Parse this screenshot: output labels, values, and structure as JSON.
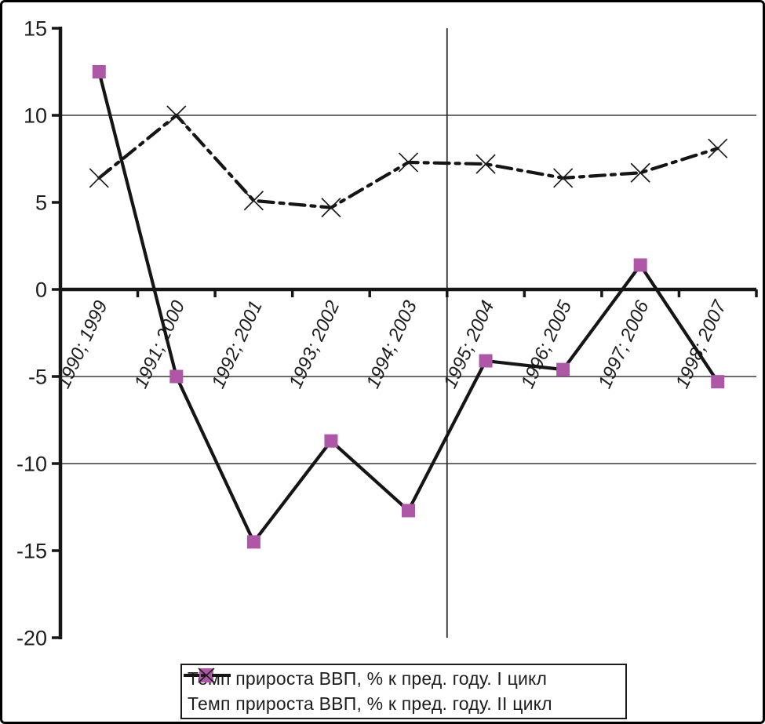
{
  "chart_data": {
    "type": "line",
    "title": "",
    "categories": [
      "1990; 1999",
      "1991; 2000",
      "1992; 2001",
      "1993; 2002",
      "1994; 2003",
      "1995; 2004",
      "1996; 2005",
      "1997; 2006",
      "1998; 2007"
    ],
    "series": [
      {
        "name": "Темп прироста ВВП, % к пред. году. I цикл",
        "line": "solid",
        "marker": "square",
        "line_color": "#151515",
        "marker_color": "#ad57a6",
        "values": [
          12.5,
          -5.0,
          -14.5,
          -8.7,
          -12.7,
          -4.1,
          -4.6,
          1.4,
          -5.3
        ]
      },
      {
        "name": "Темп прироста ВВП, % к пред. году. II цикл",
        "line": "dash-dot",
        "marker": "x",
        "line_color": "#151515",
        "marker_color": "#1b1b1b",
        "values": [
          6.4,
          10.0,
          5.1,
          4.7,
          7.3,
          7.2,
          6.4,
          6.7,
          8.1
        ]
      }
    ],
    "ylim": [
      -20,
      15
    ],
    "yticks": [
      15,
      10,
      5,
      0,
      -5,
      -10,
      -15,
      -20
    ],
    "gridlines_y": [
      10,
      -5,
      -10
    ],
    "divider_boundary_index": 5,
    "grid_color": "#3a3a3a",
    "axis_color": "#161616",
    "legend_position": "bottom"
  },
  "legend": {
    "entries": [
      {
        "label": "Темп прироста ВВП, % к пред. году. I цикл"
      },
      {
        "label": "Темп прироста ВВП, % к пред. году. II цикл"
      }
    ]
  }
}
